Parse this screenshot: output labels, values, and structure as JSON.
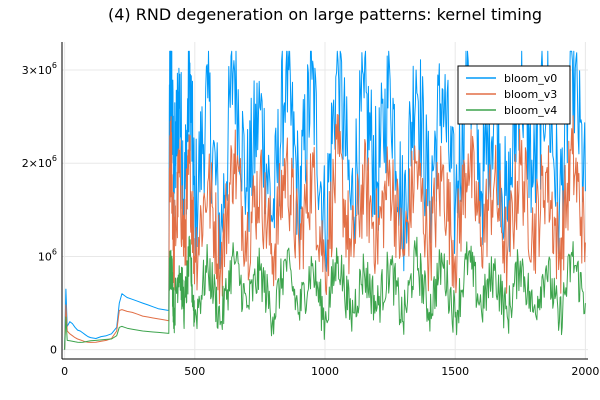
{
  "chart_data": {
    "type": "line",
    "title": "(4) RND degeneration on large patterns: kernel timing",
    "xlabel": "",
    "ylabel": "",
    "xlim": [
      -10,
      2010
    ],
    "ylim": [
      -100000,
      3300000
    ],
    "x_ticks": [
      0,
      500,
      1000,
      1500,
      2000
    ],
    "y_ticks": [
      {
        "value": 0,
        "label": "0",
        "exp": ""
      },
      {
        "value": 1000000,
        "label": "10",
        "exp": "6"
      },
      {
        "value": 2000000,
        "label": "2×10",
        "exp": "6"
      },
      {
        "value": 3000000,
        "label": "3×10",
        "exp": "6"
      }
    ],
    "grid": true,
    "legend_position": "top-right",
    "series": [
      {
        "name": "bloom_v0",
        "color": "#009af9",
        "x": [
          0,
          5,
          10,
          20,
          30,
          40,
          50,
          60,
          70,
          80,
          90,
          100,
          120,
          140,
          160,
          180,
          200,
          210,
          220,
          230,
          240,
          260,
          280,
          300,
          320,
          340,
          360,
          380,
          400,
          402,
          410,
          420,
          440,
          460,
          480,
          500,
          550,
          600,
          650,
          700,
          750,
          800,
          850,
          900,
          950,
          1000,
          1050,
          1100,
          1150,
          1200,
          1250,
          1300,
          1350,
          1400,
          1450,
          1500,
          1550,
          1600,
          1650,
          1700,
          1750,
          1800,
          1850,
          1900,
          1950,
          2000
        ],
        "values": [
          0,
          650000,
          250000,
          300000,
          280000,
          240000,
          210000,
          200000,
          180000,
          160000,
          140000,
          130000,
          120000,
          140000,
          150000,
          170000,
          240000,
          500000,
          600000,
          580000,
          560000,
          540000,
          520000,
          500000,
          480000,
          460000,
          440000,
          430000,
          420000,
          2600000,
          2900000,
          1800000,
          2800000,
          1600000,
          3000000,
          1500000,
          2700000,
          1200000,
          3100000,
          1700000,
          2600000,
          1400000,
          3000000,
          1600000,
          2900000,
          1300000,
          3100000,
          1500000,
          2700000,
          1800000,
          2900000,
          1400000,
          3000000,
          1600000,
          2800000,
          1500000,
          3100000,
          1700000,
          2600000,
          1400000,
          3000000,
          1800000,
          2900000,
          1500000,
          3100000,
          1700000
        ]
      },
      {
        "name": "bloom_v3",
        "color": "#e26f46",
        "x": [
          0,
          5,
          10,
          20,
          30,
          40,
          50,
          60,
          70,
          80,
          90,
          100,
          120,
          140,
          160,
          180,
          200,
          210,
          220,
          230,
          240,
          260,
          280,
          300,
          320,
          340,
          360,
          380,
          400,
          402,
          410,
          420,
          440,
          460,
          480,
          500,
          550,
          600,
          650,
          700,
          750,
          800,
          850,
          900,
          950,
          1000,
          1050,
          1100,
          1150,
          1200,
          1250,
          1300,
          1350,
          1400,
          1450,
          1500,
          1550,
          1600,
          1650,
          1700,
          1750,
          1800,
          1850,
          1900,
          1950,
          2000
        ],
        "values": [
          0,
          480000,
          200000,
          170000,
          150000,
          130000,
          115000,
          105000,
          95000,
          85000,
          80000,
          78000,
          80000,
          90000,
          100000,
          120000,
          200000,
          420000,
          430000,
          420000,
          410000,
          400000,
          380000,
          360000,
          350000,
          340000,
          330000,
          320000,
          310000,
          1800000,
          2100000,
          1000000,
          1900000,
          1100000,
          2000000,
          1000000,
          1800000,
          900000,
          2100000,
          1200000,
          1800000,
          1000000,
          2000000,
          1100000,
          1900000,
          900000,
          2100000,
          1000000,
          1800000,
          1200000,
          1900000,
          1000000,
          2000000,
          1100000,
          1900000,
          1000000,
          2100000,
          1200000,
          1800000,
          1000000,
          2000000,
          1200000,
          1900000,
          1000000,
          2100000,
          1150000
        ]
      },
      {
        "name": "bloom_v4",
        "color": "#3da44d",
        "x": [
          0,
          5,
          10,
          20,
          30,
          40,
          50,
          60,
          70,
          80,
          90,
          100,
          120,
          140,
          160,
          180,
          200,
          210,
          220,
          230,
          240,
          260,
          280,
          300,
          320,
          340,
          360,
          380,
          400,
          402,
          410,
          420,
          440,
          460,
          480,
          500,
          550,
          600,
          650,
          700,
          750,
          800,
          850,
          900,
          950,
          1000,
          1050,
          1100,
          1150,
          1200,
          1250,
          1300,
          1350,
          1400,
          1450,
          1500,
          1550,
          1600,
          1650,
          1700,
          1750,
          1800,
          1850,
          1900,
          1950,
          2000
        ],
        "values": [
          0,
          350000,
          100000,
          95000,
          90000,
          85000,
          80000,
          78000,
          80000,
          85000,
          90000,
          95000,
          100000,
          105000,
          110000,
          115000,
          150000,
          240000,
          250000,
          240000,
          230000,
          220000,
          210000,
          200000,
          195000,
          190000,
          185000,
          180000,
          175000,
          800000,
          950000,
          400000,
          900000,
          450000,
          1000000,
          350000,
          900000,
          300000,
          1000000,
          450000,
          850000,
          350000,
          950000,
          400000,
          900000,
          300000,
          1000000,
          350000,
          850000,
          450000,
          900000,
          300000,
          1000000,
          400000,
          950000,
          350000,
          1000000,
          450000,
          850000,
          350000,
          950000,
          400000,
          900000,
          300000,
          1000000,
          500000
        ]
      }
    ]
  }
}
